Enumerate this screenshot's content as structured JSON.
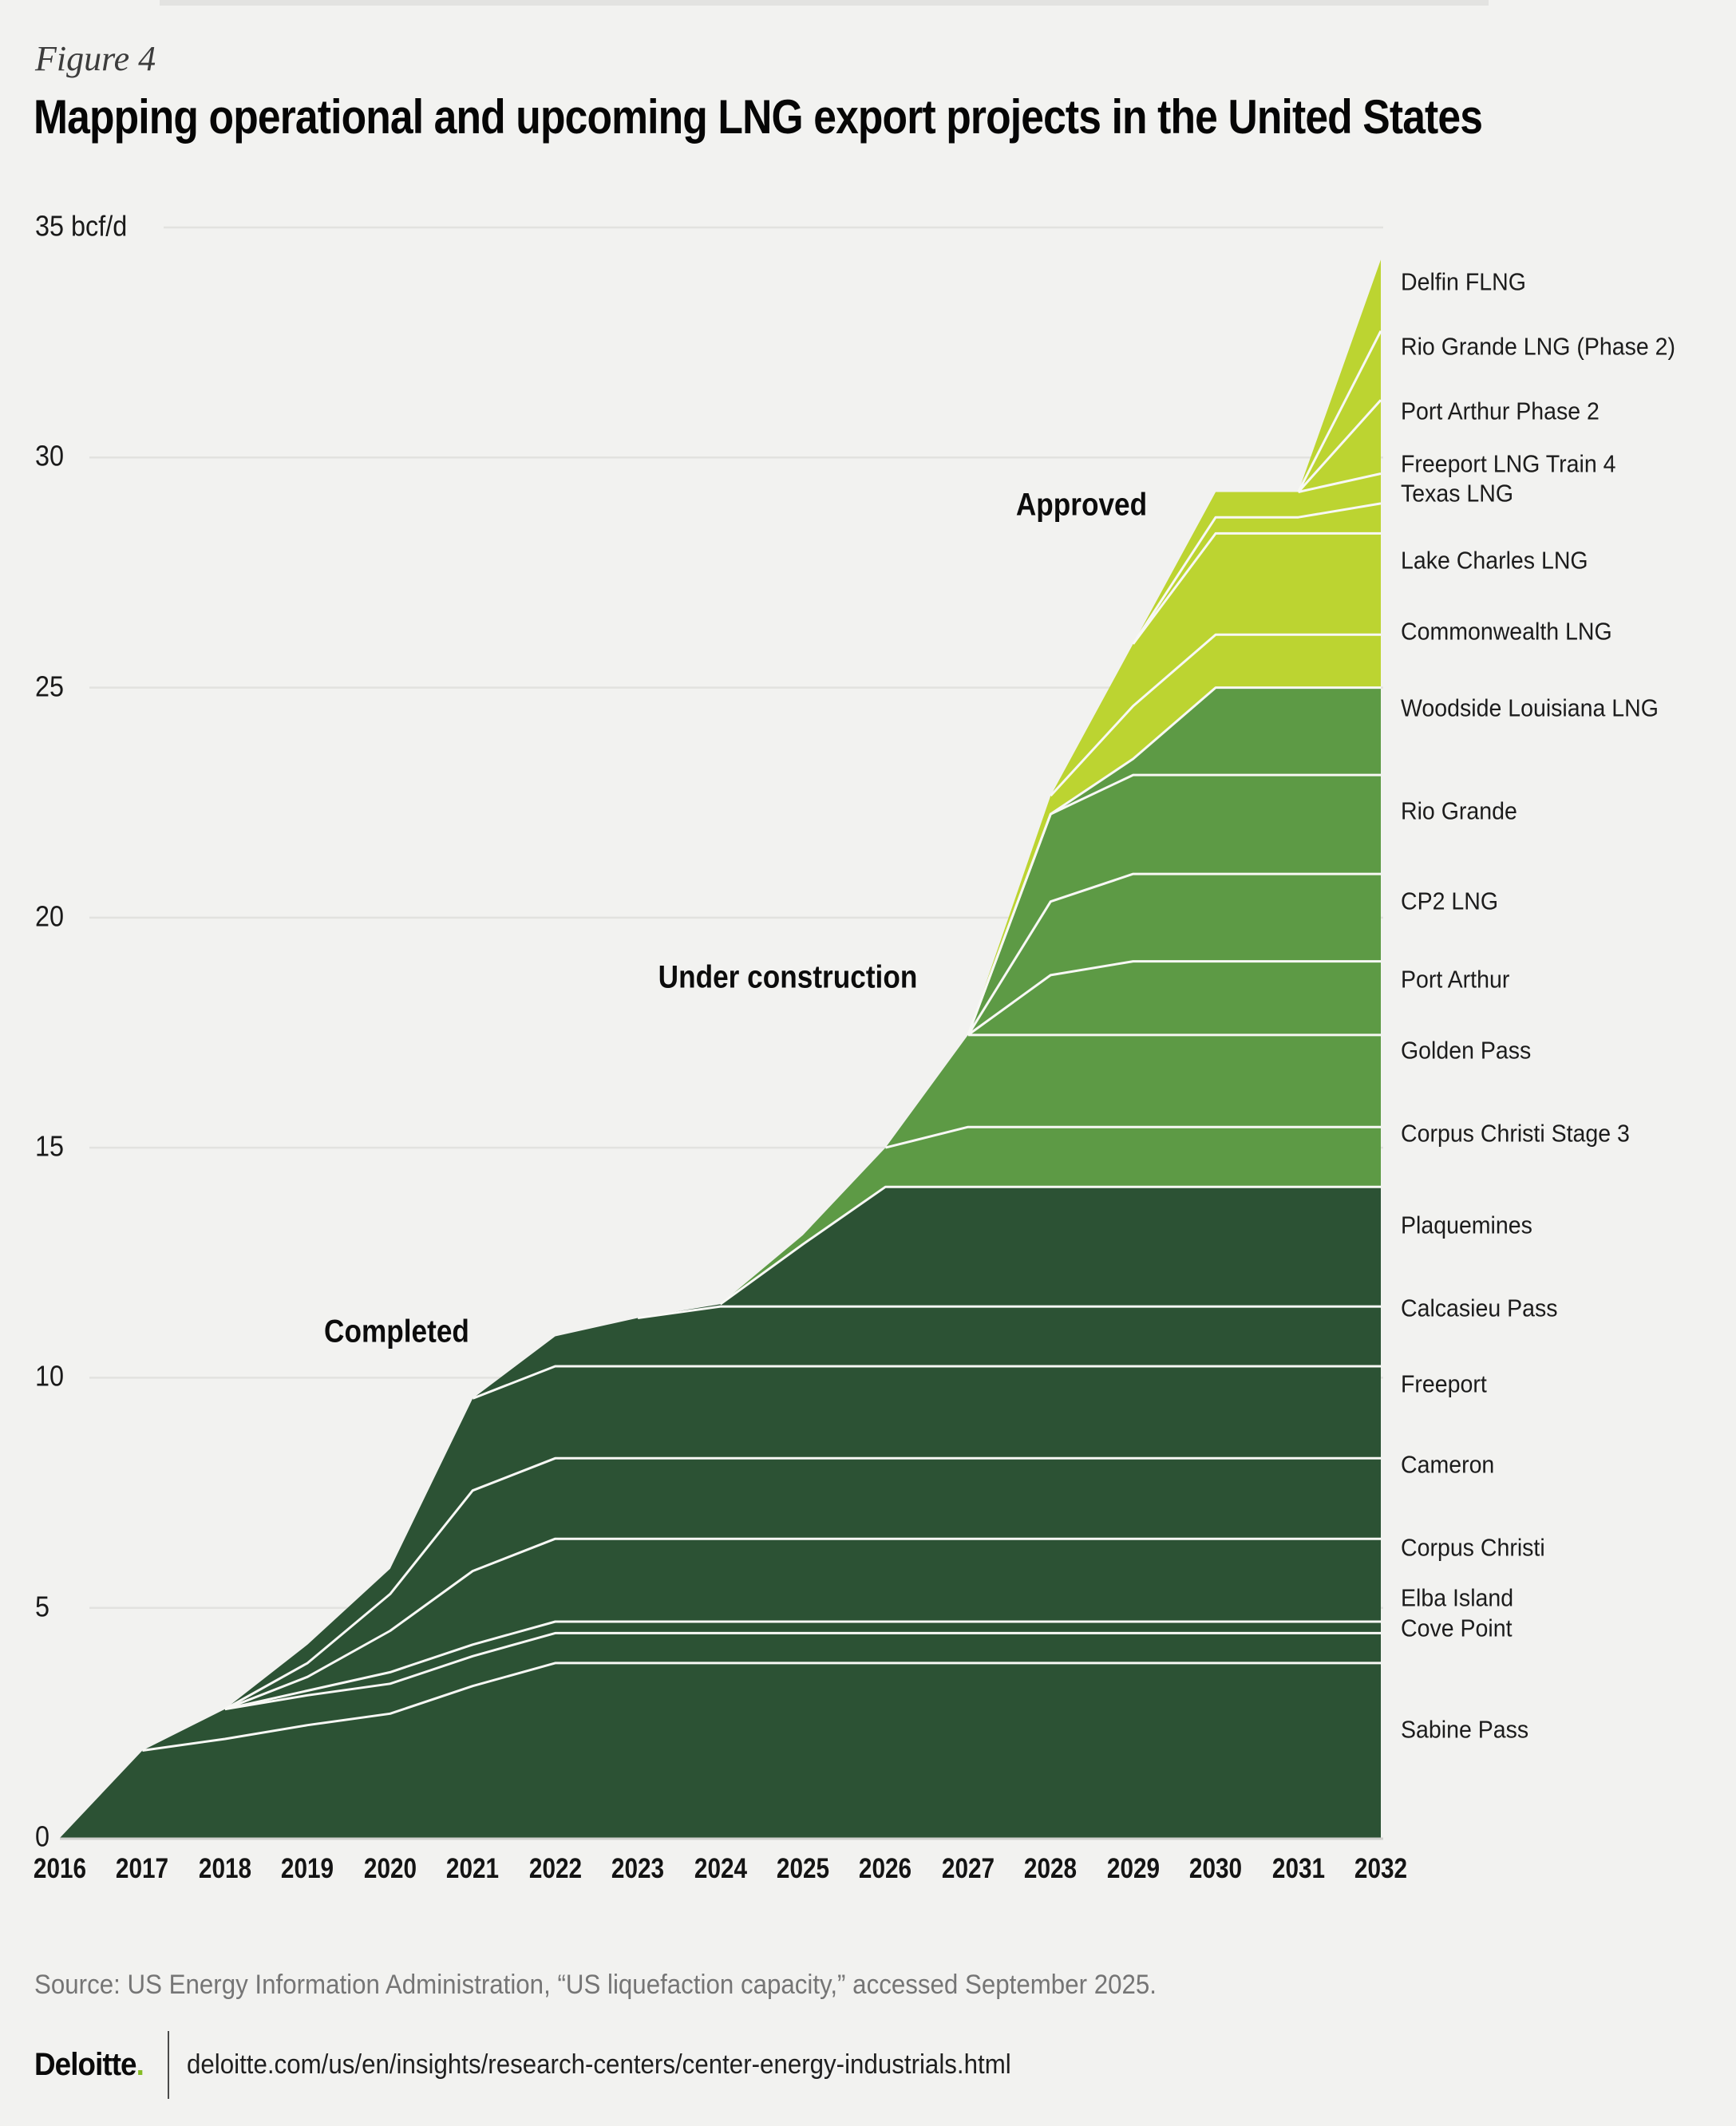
{
  "page": {
    "figure_label": "Figure 4",
    "title": "Mapping operational and upcoming LNG export projects in the United States",
    "source": "Source: US Energy Information Administration, “US liquefaction capacity,” accessed September 2025.",
    "footer": {
      "brand": "Deloitte",
      "brand_dot": ".",
      "url": "deloitte.com/us/en/insights/research-centers/center-energy-industrials.html"
    }
  },
  "colors": {
    "background": "#f2f2f0",
    "completed": "#2c5234",
    "under_construction": "#5d9a45",
    "approved": "#bcd431",
    "separator": "#f8f8f5",
    "gridline": "#e2e2df",
    "baseline": "#d0d0cd",
    "deloitte_green": "#86bc25"
  },
  "chart_data": {
    "type": "area",
    "stacked": true,
    "title": "Mapping operational and upcoming LNG export projects in the United States",
    "unit": "bcf/d",
    "xlabel": "",
    "ylabel": "bcf/d",
    "ylim": [
      0,
      35
    ],
    "grid": true,
    "legend_position": "labels-right",
    "x": [
      2016,
      2017,
      2018,
      2019,
      2020,
      2021,
      2022,
      2023,
      2024,
      2025,
      2026,
      2027,
      2028,
      2029,
      2030,
      2031,
      2032
    ],
    "y_ticks": [
      0,
      5,
      10,
      15,
      20,
      25,
      30,
      35
    ],
    "y_tick_labels": [
      "0",
      "5",
      "10",
      "15",
      "20",
      "25",
      "30",
      "35 bcf/d"
    ],
    "groups": [
      {
        "id": "completed",
        "label": "Completed",
        "label_pos": {
          "year": 2020.08,
          "value": 11.0
        }
      },
      {
        "id": "under_construction",
        "label": "Under construction",
        "label_pos": {
          "year": 2024.82,
          "value": 18.7
        }
      },
      {
        "id": "approved",
        "label": "Approved",
        "label_pos": {
          "year": 2028.37,
          "value": 28.97
        }
      }
    ],
    "series": [
      {
        "name": "Sabine Pass",
        "group": "completed",
        "label_value": 2.35,
        "values": [
          0,
          1.9,
          2.15,
          2.45,
          2.7,
          3.3,
          3.8,
          3.8,
          3.8,
          3.8,
          3.8,
          3.8,
          3.8,
          3.8,
          3.8,
          3.8,
          3.8
        ]
      },
      {
        "name": "Cove Point",
        "group": "completed",
        "label_value": 4.55,
        "values": [
          0,
          0,
          0.65,
          0.65,
          0.65,
          0.65,
          0.65,
          0.65,
          0.65,
          0.65,
          0.65,
          0.65,
          0.65,
          0.65,
          0.65,
          0.65,
          0.65
        ]
      },
      {
        "name": "Elba Island",
        "group": "completed",
        "label_value": 5.2,
        "values": [
          0,
          0,
          0,
          0.1,
          0.25,
          0.25,
          0.25,
          0.25,
          0.25,
          0.25,
          0.25,
          0.25,
          0.25,
          0.25,
          0.25,
          0.25,
          0.25
        ]
      },
      {
        "name": "Corpus Christi",
        "group": "completed",
        "label_value": 6.3,
        "values": [
          0,
          0,
          0,
          0.3,
          0.9,
          1.6,
          1.8,
          1.8,
          1.8,
          1.8,
          1.8,
          1.8,
          1.8,
          1.8,
          1.8,
          1.8,
          1.8
        ]
      },
      {
        "name": "Cameron",
        "group": "completed",
        "label_value": 8.1,
        "values": [
          0,
          0,
          0,
          0.3,
          0.8,
          1.75,
          1.75,
          1.75,
          1.75,
          1.75,
          1.75,
          1.75,
          1.75,
          1.75,
          1.75,
          1.75,
          1.75
        ]
      },
      {
        "name": "Freeport",
        "group": "completed",
        "label_value": 9.85,
        "values": [
          0,
          0,
          0,
          0.4,
          0.55,
          2.0,
          2.0,
          2.0,
          2.0,
          2.0,
          2.0,
          2.0,
          2.0,
          2.0,
          2.0,
          2.0,
          2.0
        ]
      },
      {
        "name": "Calcasieu Pass",
        "group": "completed",
        "label_value": 11.5,
        "values": [
          0,
          0,
          0,
          0,
          0,
          0,
          0.65,
          1.05,
          1.3,
          1.3,
          1.3,
          1.3,
          1.3,
          1.3,
          1.3,
          1.3,
          1.3
        ]
      },
      {
        "name": "Plaquemines",
        "group": "completed",
        "label_value": 13.3,
        "values": [
          0,
          0,
          0,
          0,
          0,
          0,
          0,
          0,
          0.05,
          1.35,
          2.6,
          2.6,
          2.6,
          2.6,
          2.6,
          2.6,
          2.6
        ]
      },
      {
        "name": "Corpus Christi Stage 3",
        "group": "under_construction",
        "label_value": 15.3,
        "values": [
          0,
          0,
          0,
          0,
          0,
          0,
          0,
          0,
          0,
          0.2,
          0.85,
          1.3,
          1.3,
          1.3,
          1.3,
          1.3,
          1.3
        ]
      },
      {
        "name": "Golden Pass",
        "group": "under_construction",
        "label_value": 17.1,
        "values": [
          0,
          0,
          0,
          0,
          0,
          0,
          0,
          0,
          0,
          0,
          0,
          2.0,
          2.0,
          2.0,
          2.0,
          2.0,
          2.0
        ]
      },
      {
        "name": "Port Arthur",
        "group": "under_construction",
        "label_value": 18.65,
        "values": [
          0,
          0,
          0,
          0,
          0,
          0,
          0,
          0,
          0,
          0,
          0,
          0,
          1.3,
          1.6,
          1.6,
          1.6,
          1.6
        ]
      },
      {
        "name": "CP2 LNG",
        "group": "under_construction",
        "label_value": 20.35,
        "values": [
          0,
          0,
          0,
          0,
          0,
          0,
          0,
          0,
          0,
          0,
          0,
          0,
          1.6,
          1.9,
          1.9,
          1.9,
          1.9
        ]
      },
      {
        "name": "Rio Grande",
        "group": "under_construction",
        "label_value": 22.3,
        "values": [
          0,
          0,
          0,
          0,
          0,
          0,
          0,
          0,
          0,
          0,
          0,
          0,
          1.9,
          2.15,
          2.15,
          2.15,
          2.15
        ]
      },
      {
        "name": "Woodside Louisiana LNG",
        "group": "under_construction",
        "label_value": 24.55,
        "values": [
          0,
          0,
          0,
          0,
          0,
          0,
          0,
          0,
          0,
          0,
          0,
          0,
          0,
          0.35,
          1.9,
          1.9,
          1.9
        ]
      },
      {
        "name": "Commonwealth LNG",
        "group": "approved",
        "label_value": 26.2,
        "values": [
          0,
          0,
          0,
          0,
          0,
          0,
          0,
          0,
          0,
          0,
          0,
          0,
          0.4,
          1.15,
          1.15,
          1.15,
          1.15
        ]
      },
      {
        "name": "Lake Charles LNG",
        "group": "approved",
        "label_value": 27.75,
        "values": [
          0,
          0,
          0,
          0,
          0,
          0,
          0,
          0,
          0,
          0,
          0,
          0,
          0,
          1.35,
          2.2,
          2.2,
          2.2
        ]
      },
      {
        "name": "Texas LNG",
        "group": "approved",
        "label_value": 29.2,
        "values": [
          0,
          0,
          0,
          0,
          0,
          0,
          0,
          0,
          0,
          0,
          0,
          0,
          0,
          0,
          0.35,
          0.35,
          0.65
        ]
      },
      {
        "name": "Freeport LNG Train 4",
        "group": "approved",
        "label_value": 29.85,
        "values": [
          0,
          0,
          0,
          0,
          0,
          0,
          0,
          0,
          0,
          0,
          0,
          0,
          0,
          0,
          0.55,
          0.55,
          0.65
        ]
      },
      {
        "name": "Port Arthur Phase 2",
        "group": "approved",
        "label_value": 31.0,
        "values": [
          0,
          0,
          0,
          0,
          0,
          0,
          0,
          0,
          0,
          0,
          0,
          0,
          0,
          0,
          0,
          0,
          1.6
        ]
      },
      {
        "name": "Rio Grande LNG (Phase 2)",
        "group": "approved",
        "label_value": 32.4,
        "values": [
          0,
          0,
          0,
          0,
          0,
          0,
          0,
          0,
          0,
          0,
          0,
          0,
          0,
          0,
          0,
          0,
          1.5
        ]
      },
      {
        "name": "Delfin FLNG",
        "group": "approved",
        "label_value": 33.8,
        "values": [
          0,
          0,
          0,
          0,
          0,
          0,
          0,
          0,
          0,
          0,
          0,
          0,
          0,
          0,
          0,
          0,
          1.55
        ]
      }
    ]
  }
}
